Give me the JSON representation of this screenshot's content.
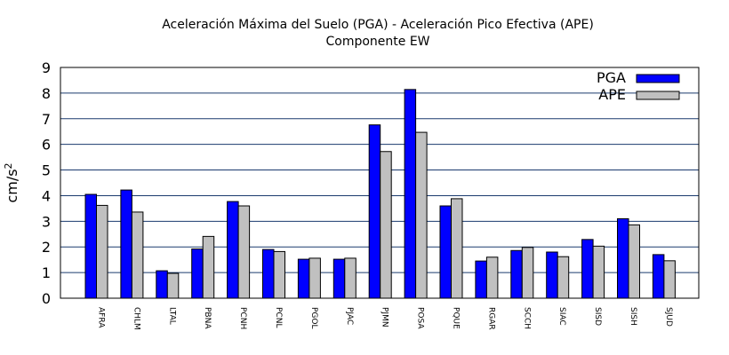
{
  "chart_data": {
    "type": "bar",
    "title": "Aceleración Máxima del Suelo (PGA) -  Aceleración Pico Efectiva (APE)",
    "subtitle": "Componente EW",
    "ylabel_base": "cm/s",
    "ylabel_exp": "2",
    "xlabel": "",
    "ylim": [
      0,
      9
    ],
    "yticks": [
      "0",
      "1",
      "2",
      "3",
      "4",
      "5",
      "6",
      "7",
      "8",
      "9"
    ],
    "grid": true,
    "legend_position": "top-right",
    "categories": [
      "AFRA",
      "CHLM",
      "LTAL",
      "PBNA",
      "PCNH",
      "PCNL",
      "PGOL",
      "PJAC",
      "PJMN",
      "POSA",
      "PQUE",
      "RGAR",
      "SCCH",
      "SIAC",
      "SISD",
      "SISH",
      "SJUD"
    ],
    "series": [
      {
        "name": "PGA",
        "color": "#0000ff",
        "values": [
          4.05,
          4.22,
          1.07,
          1.92,
          3.77,
          1.9,
          1.52,
          1.52,
          6.76,
          8.14,
          3.6,
          1.45,
          1.86,
          1.8,
          2.29,
          3.1,
          1.7
        ]
      },
      {
        "name": "APE",
        "color": "#c0c0c0",
        "values": [
          3.62,
          3.36,
          0.97,
          2.41,
          3.6,
          1.82,
          1.56,
          1.56,
          5.72,
          6.47,
          3.88,
          1.6,
          1.98,
          1.62,
          2.03,
          2.86,
          1.46
        ]
      }
    ]
  }
}
